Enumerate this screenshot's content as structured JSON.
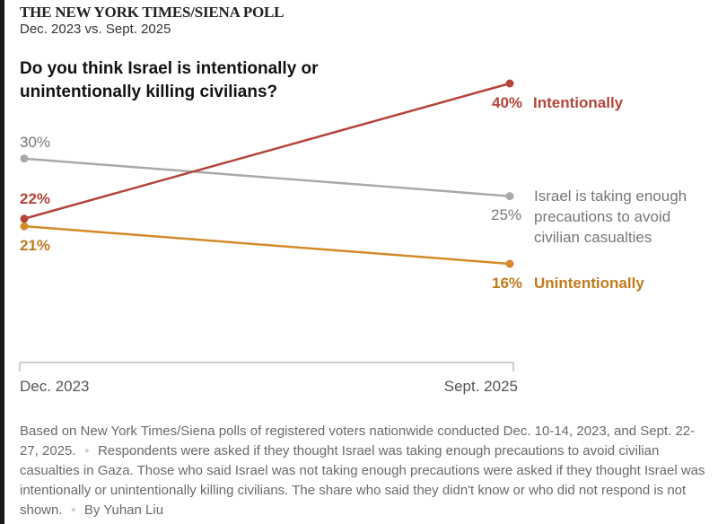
{
  "header": {
    "kicker": "THE NEW YORK TIMES/SIENA POLL",
    "subtitle": "Dec. 2023 vs. Sept. 2025",
    "question": "Do you think Israel is intentionally or unintentionally killing civilians?"
  },
  "chart_data": {
    "type": "line",
    "title": "Do you think Israel is intentionally or unintentionally killing civilians?",
    "x": [
      "Dec. 2023",
      "Sept. 2025"
    ],
    "xlabel": "",
    "ylabel": "",
    "ylim": [
      16,
      40
    ],
    "grid": false,
    "series": [
      {
        "name": "Intentionally",
        "label": "Intentionally",
        "values": [
          22,
          40
        ],
        "value_labels": [
          "22%",
          "40%"
        ],
        "color": "#b5443a"
      },
      {
        "name": "Israel is taking enough precautions to avoid civilian casualties",
        "label_lines": [
          "Israel is taking enough",
          "precautions to avoid",
          "civilian casualties"
        ],
        "values": [
          30,
          25
        ],
        "value_labels": [
          "30%",
          "25%"
        ],
        "color": "#a9a9a9",
        "text_color": "#777777"
      },
      {
        "name": "Unintentionally",
        "label": "Unintentionally",
        "values": [
          21,
          16
        ],
        "value_labels": [
          "21%",
          "16%"
        ],
        "color": "#d38a2a",
        "text_color": "#c27a1c"
      }
    ]
  },
  "footnote": {
    "part1": "Based on New York Times/Siena polls of registered voters nationwide conducted Dec. 10-14, 2023, and Sept. 22-27, 2025.",
    "part2": "Respondents were asked if they thought Israel was taking enough precautions to avoid civilian casualties in Gaza. Those who said Israel was not taking enough precautions were asked if they thought Israel was intentionally or unintentionally killing civilians. The share who said they didn't know or who did not respond is not shown.",
    "byline": "By Yuhan Liu",
    "separator": "●"
  }
}
